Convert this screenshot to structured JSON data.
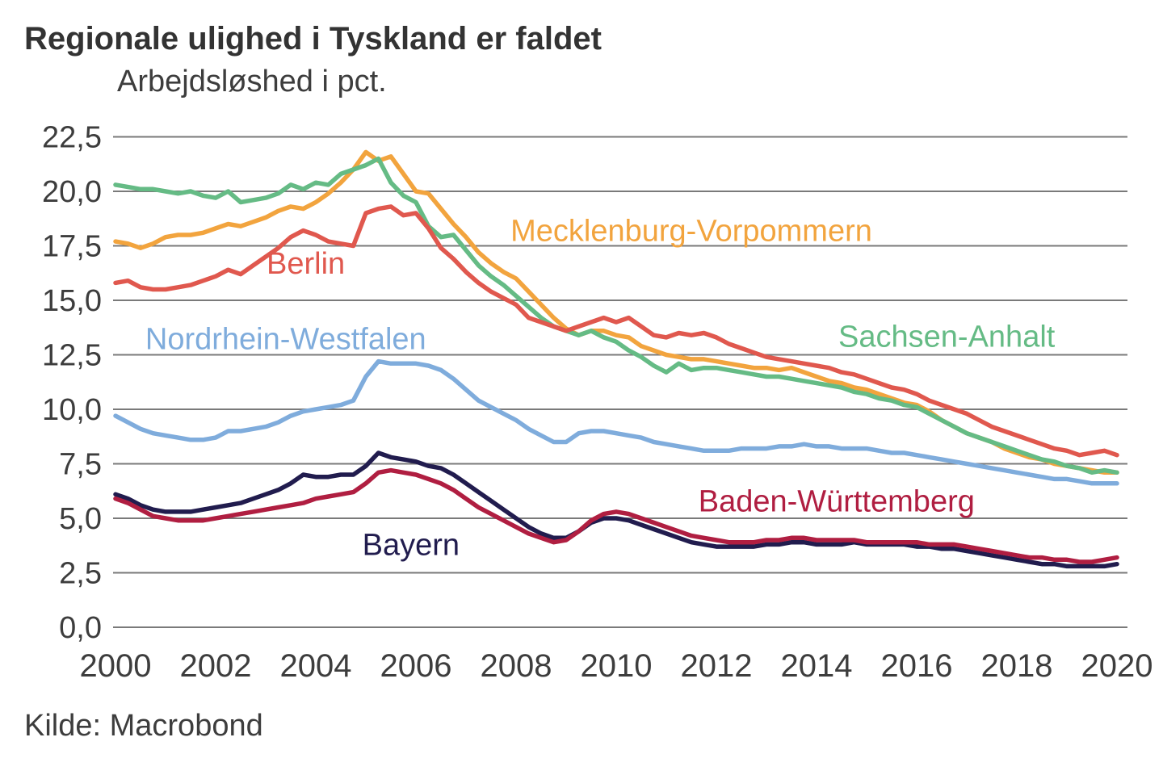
{
  "header": {
    "title": "Regionale ulighed i Tyskland er faldet",
    "subtitle": "Arbejdsløshed i pct."
  },
  "footer": {
    "source": "Kilde: Macrobond"
  },
  "colors": {
    "title_text": "#333333",
    "axis_text": "#3d3d3d",
    "gridline": "#7a7a7a",
    "background": "#ffffff"
  },
  "chart_data": {
    "type": "line",
    "title": "Regionale ulighed i Tyskland er faldet",
    "ylabel": "Arbejdsløshed i pct.",
    "xlim": [
      2000,
      2020
    ],
    "ylim": [
      0,
      22.5
    ],
    "grid": "horizontal",
    "legend_position": "inline-labels",
    "y_tick_values": [
      0,
      2.5,
      5,
      7.5,
      10,
      12.5,
      15,
      17.5,
      20,
      22.5
    ],
    "y_tick_labels": [
      "0,0",
      "2,5",
      "5,0",
      "7,5",
      "10,0",
      "12,5",
      "15,0",
      "17,5",
      "20,0",
      "22,5"
    ],
    "x_tick_values": [
      2000,
      2002,
      2004,
      2006,
      2008,
      2010,
      2012,
      2014,
      2016,
      2018,
      2020
    ],
    "x_tick_labels": [
      "2000",
      "2002",
      "2004",
      "2006",
      "2008",
      "2010",
      "2012",
      "2014",
      "2016",
      "2018",
      "2020"
    ],
    "x_start": 2000,
    "x_step": 0.25,
    "series": [
      {
        "name": "Mecklenburg-Vorpommern",
        "color": "#F2A43E",
        "values": [
          17.7,
          17.6,
          17.4,
          17.6,
          17.9,
          18.0,
          18.0,
          18.1,
          18.3,
          18.5,
          18.4,
          18.6,
          18.8,
          19.1,
          19.3,
          19.2,
          19.5,
          19.9,
          20.4,
          21.0,
          21.8,
          21.4,
          21.6,
          20.8,
          20.0,
          19.9,
          19.2,
          18.5,
          17.9,
          17.2,
          16.7,
          16.3,
          16.0,
          15.4,
          14.8,
          14.2,
          13.7,
          13.4,
          13.6,
          13.6,
          13.4,
          13.3,
          12.9,
          12.7,
          12.5,
          12.4,
          12.3,
          12.3,
          12.2,
          12.1,
          12.0,
          11.9,
          11.9,
          11.8,
          11.9,
          11.7,
          11.5,
          11.3,
          11.2,
          11.0,
          10.9,
          10.7,
          10.5,
          10.3,
          10.2,
          9.9,
          9.5,
          9.2,
          8.9,
          8.7,
          8.5,
          8.2,
          8.0,
          7.8,
          7.7,
          7.5,
          7.4,
          7.3,
          7.2,
          7.1,
          7.1
        ]
      },
      {
        "name": "Sachsen-Anhalt",
        "color": "#65BB85",
        "values": [
          20.3,
          20.2,
          20.1,
          20.1,
          20.0,
          19.9,
          20.0,
          19.8,
          19.7,
          20.0,
          19.5,
          19.6,
          19.7,
          19.9,
          20.3,
          20.1,
          20.4,
          20.3,
          20.8,
          21.0,
          21.2,
          21.5,
          20.4,
          19.8,
          19.5,
          18.4,
          17.9,
          18.0,
          17.3,
          16.6,
          16.1,
          15.7,
          15.2,
          14.7,
          14.2,
          13.8,
          13.6,
          13.4,
          13.6,
          13.3,
          13.1,
          12.7,
          12.4,
          12.0,
          11.7,
          12.1,
          11.8,
          11.9,
          11.9,
          11.8,
          11.7,
          11.6,
          11.5,
          11.5,
          11.4,
          11.3,
          11.2,
          11.1,
          11.0,
          10.8,
          10.7,
          10.5,
          10.4,
          10.2,
          10.1,
          9.8,
          9.5,
          9.2,
          8.9,
          8.7,
          8.5,
          8.3,
          8.1,
          7.9,
          7.7,
          7.6,
          7.4,
          7.3,
          7.1,
          7.2,
          7.1
        ]
      },
      {
        "name": "Berlin",
        "color": "#E0584E",
        "values": [
          15.8,
          15.9,
          15.6,
          15.5,
          15.5,
          15.6,
          15.7,
          15.9,
          16.1,
          16.4,
          16.2,
          16.6,
          17.0,
          17.4,
          17.9,
          18.2,
          18.0,
          17.7,
          17.6,
          17.5,
          19.0,
          19.2,
          19.3,
          18.9,
          19.0,
          18.3,
          17.4,
          16.9,
          16.3,
          15.8,
          15.4,
          15.1,
          14.8,
          14.2,
          14.0,
          13.8,
          13.6,
          13.8,
          14.0,
          14.2,
          14.0,
          14.2,
          13.8,
          13.4,
          13.3,
          13.5,
          13.4,
          13.5,
          13.3,
          13.0,
          12.8,
          12.6,
          12.4,
          12.3,
          12.2,
          12.1,
          12.0,
          11.9,
          11.7,
          11.6,
          11.4,
          11.2,
          11.0,
          10.9,
          10.7,
          10.4,
          10.2,
          10.0,
          9.8,
          9.5,
          9.2,
          9.0,
          8.8,
          8.6,
          8.4,
          8.2,
          8.1,
          7.9,
          8.0,
          8.1,
          7.9
        ]
      },
      {
        "name": "Nordrhein-Westfalen",
        "color": "#7FACDC",
        "values": [
          9.7,
          9.4,
          9.1,
          8.9,
          8.8,
          8.7,
          8.6,
          8.6,
          8.7,
          9.0,
          9.0,
          9.1,
          9.2,
          9.4,
          9.7,
          9.9,
          10.0,
          10.1,
          10.2,
          10.4,
          11.5,
          12.2,
          12.1,
          12.1,
          12.1,
          12.0,
          11.8,
          11.4,
          10.9,
          10.4,
          10.1,
          9.8,
          9.5,
          9.1,
          8.8,
          8.5,
          8.5,
          8.9,
          9.0,
          9.0,
          8.9,
          8.8,
          8.7,
          8.5,
          8.4,
          8.3,
          8.2,
          8.1,
          8.1,
          8.1,
          8.2,
          8.2,
          8.2,
          8.3,
          8.3,
          8.4,
          8.3,
          8.3,
          8.2,
          8.2,
          8.2,
          8.1,
          8.0,
          8.0,
          7.9,
          7.8,
          7.7,
          7.6,
          7.5,
          7.4,
          7.3,
          7.2,
          7.1,
          7.0,
          6.9,
          6.8,
          6.8,
          6.7,
          6.6,
          6.6,
          6.6
        ]
      },
      {
        "name": "Bayern",
        "color": "#211C4E",
        "values": [
          6.1,
          5.9,
          5.6,
          5.4,
          5.3,
          5.3,
          5.3,
          5.4,
          5.5,
          5.6,
          5.7,
          5.9,
          6.1,
          6.3,
          6.6,
          7.0,
          6.9,
          6.9,
          7.0,
          7.0,
          7.4,
          8.0,
          7.8,
          7.7,
          7.6,
          7.4,
          7.3,
          7.0,
          6.6,
          6.2,
          5.8,
          5.4,
          5.0,
          4.6,
          4.3,
          4.1,
          4.1,
          4.4,
          4.8,
          5.0,
          5.0,
          4.9,
          4.7,
          4.5,
          4.3,
          4.1,
          3.9,
          3.8,
          3.7,
          3.7,
          3.7,
          3.7,
          3.8,
          3.8,
          3.9,
          3.9,
          3.8,
          3.8,
          3.8,
          3.9,
          3.8,
          3.8,
          3.8,
          3.8,
          3.7,
          3.7,
          3.6,
          3.6,
          3.5,
          3.4,
          3.3,
          3.2,
          3.1,
          3.0,
          2.9,
          2.9,
          2.8,
          2.8,
          2.8,
          2.8,
          2.9
        ]
      },
      {
        "name": "Baden-Württemberg",
        "color": "#B01E41",
        "values": [
          5.9,
          5.7,
          5.4,
          5.1,
          5.0,
          4.9,
          4.9,
          4.9,
          5.0,
          5.1,
          5.2,
          5.3,
          5.4,
          5.5,
          5.6,
          5.7,
          5.9,
          6.0,
          6.1,
          6.2,
          6.6,
          7.1,
          7.2,
          7.1,
          7.0,
          6.8,
          6.6,
          6.3,
          5.9,
          5.5,
          5.2,
          4.9,
          4.6,
          4.3,
          4.1,
          3.9,
          4.0,
          4.4,
          4.9,
          5.2,
          5.3,
          5.2,
          5.0,
          4.8,
          4.6,
          4.4,
          4.2,
          4.1,
          4.0,
          3.9,
          3.9,
          3.9,
          4.0,
          4.0,
          4.1,
          4.1,
          4.0,
          4.0,
          4.0,
          4.0,
          3.9,
          3.9,
          3.9,
          3.9,
          3.9,
          3.8,
          3.8,
          3.8,
          3.7,
          3.6,
          3.5,
          3.4,
          3.3,
          3.2,
          3.2,
          3.1,
          3.1,
          3.0,
          3.0,
          3.1,
          3.2
        ]
      }
    ],
    "annotations": [
      {
        "text": "Mecklenburg-Vorpommern",
        "x": 2011.5,
        "y": 18.2,
        "color": "#F2A43E"
      },
      {
        "text": "Berlin",
        "x": 2003.8,
        "y": 16.7,
        "color": "#E0584E"
      },
      {
        "text": "Nordrhein-Westfalen",
        "x": 2003.4,
        "y": 13.25,
        "color": "#7FACDC"
      },
      {
        "text": "Sachsen-Anhalt",
        "x": 2016.6,
        "y": 13.35,
        "color": "#65BB85"
      },
      {
        "text": "Baden-Württemberg",
        "x": 2014.4,
        "y": 5.8,
        "color": "#B01E41"
      },
      {
        "text": "Bayern",
        "x": 2005.9,
        "y": 3.8,
        "color": "#211C4E"
      }
    ]
  }
}
